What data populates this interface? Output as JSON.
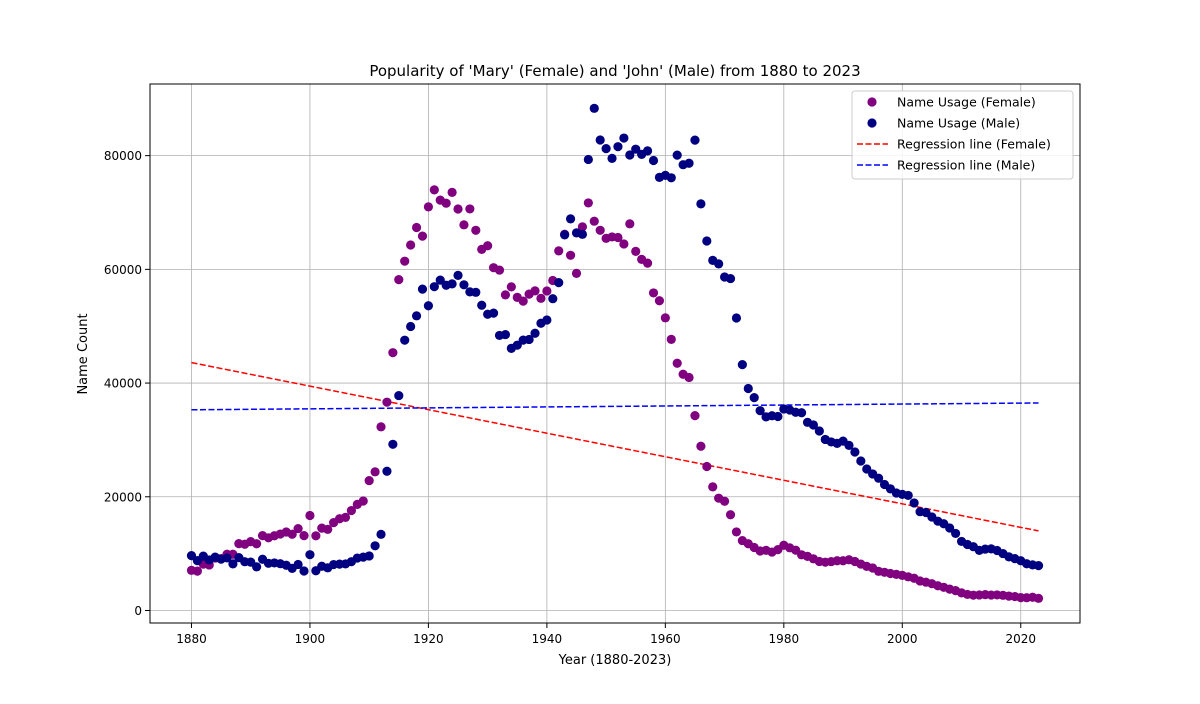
{
  "chart_data": {
    "type": "scatter",
    "title": "Popularity of 'Mary' (Female) and 'John' (Male) from 1880 to 2023",
    "xlabel": "Year (1880-2023)",
    "ylabel": "Name Count",
    "xlim": [
      1873,
      2030
    ],
    "ylim": [
      -2200,
      92600
    ],
    "xticks": [
      1880,
      1900,
      1920,
      1940,
      1960,
      1980,
      2000,
      2020
    ],
    "yticks": [
      0,
      20000,
      40000,
      60000,
      80000
    ],
    "grid": true,
    "legend_position": "top-right",
    "series": [
      {
        "name": "Name Usage (Female)",
        "kind": "scatter",
        "color": "#800080",
        "x": [
          1880,
          1881,
          1882,
          1883,
          1884,
          1885,
          1886,
          1887,
          1888,
          1889,
          1890,
          1891,
          1892,
          1893,
          1894,
          1895,
          1896,
          1897,
          1898,
          1899,
          1900,
          1901,
          1902,
          1903,
          1904,
          1905,
          1906,
          1907,
          1908,
          1909,
          1910,
          1911,
          1912,
          1913,
          1914,
          1915,
          1916,
          1917,
          1918,
          1919,
          1920,
          1921,
          1922,
          1923,
          1924,
          1925,
          1926,
          1927,
          1928,
          1929,
          1930,
          1931,
          1932,
          1933,
          1934,
          1935,
          1936,
          1937,
          1938,
          1939,
          1940,
          1941,
          1942,
          1943,
          1944,
          1945,
          1946,
          1947,
          1948,
          1949,
          1950,
          1951,
          1952,
          1953,
          1954,
          1955,
          1956,
          1957,
          1958,
          1959,
          1960,
          1961,
          1962,
          1963,
          1964,
          1965,
          1966,
          1967,
          1968,
          1969,
          1970,
          1971,
          1972,
          1973,
          1974,
          1975,
          1976,
          1977,
          1978,
          1979,
          1980,
          1981,
          1982,
          1983,
          1984,
          1985,
          1986,
          1987,
          1988,
          1989,
          1990,
          1991,
          1992,
          1993,
          1994,
          1995,
          1996,
          1997,
          1998,
          1999,
          2000,
          2001,
          2002,
          2003,
          2004,
          2005,
          2006,
          2007,
          2008,
          2009,
          2010,
          2011,
          2012,
          2013,
          2014,
          2015,
          2016,
          2017,
          2018,
          2019,
          2020,
          2021,
          2022,
          2023
        ],
        "y": [
          7065,
          6919,
          8148,
          8012,
          9217,
          9128,
          9889,
          9888,
          11754,
          11648,
          12113,
          11742,
          13172,
          12784,
          13151,
          13446,
          13811,
          13413,
          14406,
          13172,
          16707,
          13136,
          14486,
          14275,
          15455,
          16135,
          16372,
          17580,
          18665,
          19259,
          22848,
          24390,
          32304,
          36641,
          45345,
          58187,
          61438,
          64281,
          67366,
          65839,
          70982,
          73982,
          72175,
          71634,
          73536,
          70620,
          67830,
          70630,
          66870,
          63511,
          64146,
          60296,
          59872,
          55507,
          56924,
          55065,
          54413,
          55642,
          56216,
          54905,
          56200,
          58040,
          63250,
          66168,
          62470,
          59288,
          67467,
          71683,
          68469,
          66867,
          65455,
          65703,
          65599,
          64469,
          68006,
          63158,
          61750,
          61094,
          55855,
          54472,
          51475,
          47680,
          43479,
          41551,
          40982,
          34268,
          28888,
          25323,
          21738,
          19753,
          19209,
          16839,
          13819,
          12296,
          11741,
          11079,
          10457,
          10583,
          10276,
          10710,
          11473,
          11020,
          10607,
          9793,
          9524,
          9085,
          8626,
          8499,
          8603,
          8754,
          8745,
          8926,
          8620,
          8162,
          7762,
          7479,
          6891,
          6716,
          6509,
          6349,
          6170,
          5922,
          5671,
          5196,
          4977,
          4710,
          4346,
          4078,
          3757,
          3498,
          3095,
          2826,
          2693,
          2732,
          2797,
          2718,
          2739,
          2668,
          2531,
          2452,
          2258,
          2248,
          2326,
          2139
        ]
      },
      {
        "name": "Name Usage (Male)",
        "kind": "scatter",
        "color": "#000080",
        "x": [
          1880,
          1881,
          1882,
          1883,
          1884,
          1885,
          1886,
          1887,
          1888,
          1889,
          1890,
          1891,
          1892,
          1893,
          1894,
          1895,
          1896,
          1897,
          1898,
          1899,
          1900,
          1901,
          1902,
          1903,
          1904,
          1905,
          1906,
          1907,
          1908,
          1909,
          1910,
          1911,
          1912,
          1913,
          1914,
          1915,
          1916,
          1917,
          1918,
          1919,
          1920,
          1921,
          1922,
          1923,
          1924,
          1925,
          1926,
          1927,
          1928,
          1929,
          1930,
          1931,
          1932,
          1933,
          1934,
          1935,
          1936,
          1937,
          1938,
          1939,
          1940,
          1941,
          1942,
          1943,
          1944,
          1945,
          1946,
          1947,
          1948,
          1949,
          1950,
          1951,
          1952,
          1953,
          1954,
          1955,
          1956,
          1957,
          1958,
          1959,
          1960,
          1961,
          1962,
          1963,
          1964,
          1965,
          1966,
          1967,
          1968,
          1969,
          1970,
          1971,
          1972,
          1973,
          1974,
          1975,
          1976,
          1977,
          1978,
          1979,
          1980,
          1981,
          1982,
          1983,
          1984,
          1985,
          1986,
          1987,
          1988,
          1989,
          1990,
          1991,
          1992,
          1993,
          1994,
          1995,
          1996,
          1997,
          1998,
          1999,
          2000,
          2001,
          2002,
          2003,
          2004,
          2005,
          2006,
          2007,
          2008,
          2009,
          2010,
          2011,
          2012,
          2013,
          2014,
          2015,
          2016,
          2017,
          2018,
          2019,
          2020,
          2021,
          2022,
          2023
        ],
        "y": [
          9655,
          8769,
          9557,
          8894,
          9388,
          9026,
          9245,
          8202,
          9300,
          8583,
          8509,
          7680,
          9016,
          8299,
          8365,
          8229,
          7963,
          7407,
          8099,
          6949,
          9818,
          6988,
          7780,
          7504,
          8082,
          8157,
          8190,
          8588,
          9223,
          9385,
          9595,
          11380,
          13398,
          24492,
          29232,
          37798,
          47543,
          49958,
          51825,
          56519,
          53604,
          56952,
          58110,
          57208,
          57450,
          58947,
          57282,
          56034,
          55962,
          53686,
          52107,
          52304,
          48381,
          48527,
          46101,
          46663,
          47548,
          47672,
          48761,
          50515,
          51090,
          54840,
          57670,
          66059,
          68874,
          66416,
          66161,
          79329,
          88321,
          82748,
          81238,
          79518,
          81576,
          83094,
          80119,
          81136,
          80227,
          80833,
          79145,
          76179,
          76526,
          76103,
          80093,
          78408,
          78655,
          82733,
          71521,
          64985,
          61576,
          60964,
          58658,
          58376,
          51446,
          43240,
          39048,
          37442,
          35144,
          34050,
          34253,
          34117,
          35447,
          35269,
          34872,
          34777,
          33094,
          32622,
          31569,
          30085,
          29647,
          29390,
          29793,
          29040,
          27870,
          26298,
          24891,
          24017,
          23268,
          22164,
          21394,
          20662,
          20429,
          20239,
          18917,
          17375,
          17239,
          16447,
          15710,
          15262,
          14508,
          13556,
          12147,
          11605,
          11221,
          10579,
          10791,
          10834,
          10556,
          10010,
          9431,
          9120,
          8755,
          8224,
          8026,
          7894
        ]
      },
      {
        "name": "Regression line (Female)",
        "kind": "line",
        "color": "#ff0000",
        "dash": true,
        "x": [
          1880,
          2023
        ],
        "y": [
          43600,
          14000
        ]
      },
      {
        "name": "Regression line (Male)",
        "kind": "line",
        "color": "#0000ff",
        "dash": true,
        "x": [
          1880,
          2023
        ],
        "y": [
          35300,
          36500
        ]
      }
    ]
  }
}
